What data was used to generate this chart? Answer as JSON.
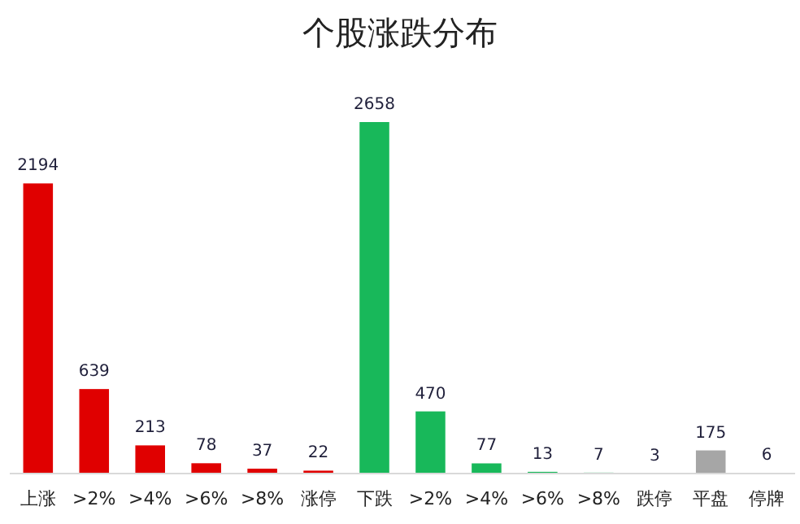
{
  "chart_data": {
    "type": "bar",
    "title": "个股涨跌分布",
    "categories": [
      "上涨",
      ">2%",
      ">4%",
      ">6%",
      ">8%",
      "涨停",
      "下跌",
      ">2%",
      ">4%",
      ">6%",
      ">8%",
      "跌停",
      "平盘",
      "停牌"
    ],
    "values": [
      2194,
      639,
      213,
      78,
      37,
      22,
      2658,
      470,
      77,
      13,
      7,
      3,
      175,
      6
    ],
    "colors": [
      "#e00000",
      "#e00000",
      "#e00000",
      "#e00000",
      "#e00000",
      "#e00000",
      "#18b85a",
      "#18b85a",
      "#18b85a",
      "#18b85a",
      "#18b85a",
      "#18b85a",
      "#a6a6a6",
      "#a6a6a6"
    ],
    "data_labels": true
  }
}
